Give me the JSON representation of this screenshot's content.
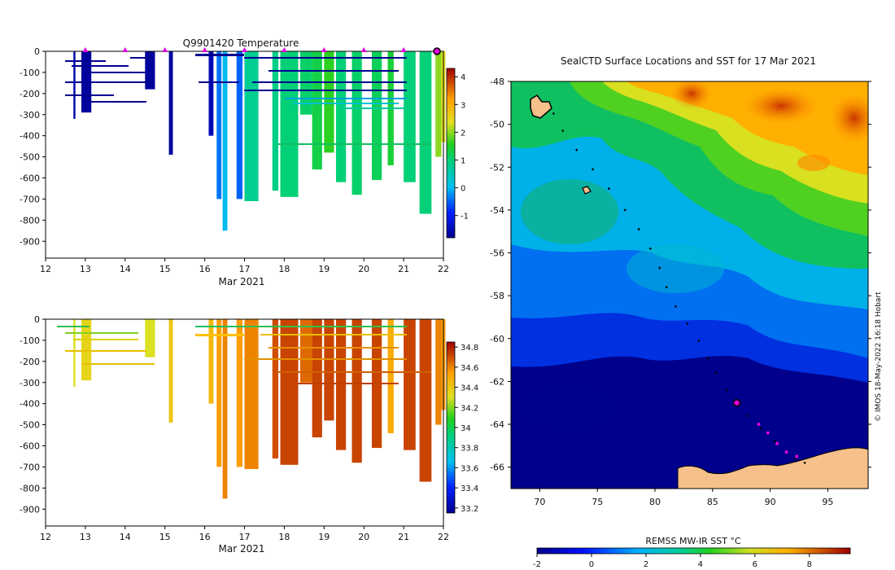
{
  "chart_data": [
    {
      "type": "heatmap",
      "title": "Q9901420  Temperature",
      "xlabel": "Mar 2021",
      "ylabel": "",
      "xlim": [
        12,
        22
      ],
      "ylim": [
        -980,
        0
      ],
      "xticks": [
        12,
        13,
        14,
        15,
        16,
        17,
        18,
        19,
        20,
        21,
        22
      ],
      "yticks": [
        0,
        -100,
        -200,
        -300,
        -400,
        -500,
        -600,
        -700,
        -800,
        -900
      ],
      "colorbar": {
        "ticks": [
          4,
          3,
          2,
          1,
          0,
          -1
        ],
        "range": [
          -1.8,
          4.3
        ]
      },
      "surface_markers_days": [
        13,
        14,
        15,
        16,
        17,
        18,
        19,
        20,
        21
      ],
      "profiles": [
        {
          "x": 12.7,
          "w": 0.05,
          "bottom": -320,
          "value": -1.6
        },
        {
          "x": 12.9,
          "w": 0.25,
          "bottom": -290,
          "value": -1.7
        },
        {
          "x": 14.5,
          "w": 0.25,
          "bottom": -180,
          "value": -1.7
        },
        {
          "x": 15.1,
          "w": 0.1,
          "bottom": -490,
          "value": -1.7
        },
        {
          "x": 16.1,
          "w": 0.12,
          "bottom": -400,
          "value": -1.5
        },
        {
          "x": 16.3,
          "w": 0.12,
          "bottom": -700,
          "value": -0.4
        },
        {
          "x": 16.45,
          "w": 0.12,
          "bottom": -850,
          "value": 0.0
        },
        {
          "x": 16.8,
          "w": 0.15,
          "bottom": -700,
          "value": -0.5
        },
        {
          "x": 17.0,
          "w": 0.35,
          "bottom": -710,
          "value": 0.8
        },
        {
          "x": 17.7,
          "w": 0.15,
          "bottom": -660,
          "value": 0.9
        },
        {
          "x": 17.9,
          "w": 0.45,
          "bottom": -690,
          "value": 1.0
        },
        {
          "x": 18.4,
          "w": 0.3,
          "bottom": -300,
          "value": 1.1
        },
        {
          "x": 18.7,
          "w": 0.25,
          "bottom": -560,
          "value": 1.3
        },
        {
          "x": 19.0,
          "w": 0.25,
          "bottom": -480,
          "value": 1.6
        },
        {
          "x": 19.3,
          "w": 0.25,
          "bottom": -620,
          "value": 1.0
        },
        {
          "x": 19.7,
          "w": 0.25,
          "bottom": -680,
          "value": 1.1
        },
        {
          "x": 20.2,
          "w": 0.25,
          "bottom": -610,
          "value": 1.2
        },
        {
          "x": 20.6,
          "w": 0.15,
          "bottom": -540,
          "value": 1.4
        },
        {
          "x": 21.0,
          "w": 0.3,
          "bottom": -620,
          "value": 1.0
        },
        {
          "x": 21.4,
          "w": 0.3,
          "bottom": -770,
          "value": 1.0
        },
        {
          "x": 21.8,
          "w": 0.15,
          "bottom": -500,
          "value": 2.0
        },
        {
          "x": 21.95,
          "w": 0.1,
          "bottom": -430,
          "value": 2.4
        }
      ]
    },
    {
      "type": "heatmap",
      "title": "",
      "xlabel": "Mar 2021",
      "ylabel": "",
      "xlim": [
        12,
        22
      ],
      "ylim": [
        -980,
        0
      ],
      "xticks": [
        12,
        13,
        14,
        15,
        16,
        17,
        18,
        19,
        20,
        21,
        22
      ],
      "yticks": [
        0,
        -100,
        -200,
        -300,
        -400,
        -500,
        -600,
        -700,
        -800,
        -900
      ],
      "colorbar": {
        "ticks": [
          34.8,
          34.6,
          34.4,
          34.2,
          34,
          33.8,
          33.6,
          33.4,
          33.2
        ],
        "range": [
          33.15,
          34.85
        ]
      },
      "profiles": [
        {
          "x": 12.7,
          "w": 0.05,
          "bottom": -320,
          "value": 34.3
        },
        {
          "x": 12.9,
          "w": 0.25,
          "bottom": -290,
          "value": 34.35
        },
        {
          "x": 14.5,
          "w": 0.25,
          "bottom": -180,
          "value": 34.3
        },
        {
          "x": 15.1,
          "w": 0.1,
          "bottom": -490,
          "value": 34.4
        },
        {
          "x": 16.1,
          "w": 0.12,
          "bottom": -400,
          "value": 34.45
        },
        {
          "x": 16.3,
          "w": 0.12,
          "bottom": -700,
          "value": 34.55
        },
        {
          "x": 16.45,
          "w": 0.12,
          "bottom": -850,
          "value": 34.6
        },
        {
          "x": 16.8,
          "w": 0.15,
          "bottom": -700,
          "value": 34.55
        },
        {
          "x": 17.0,
          "w": 0.35,
          "bottom": -710,
          "value": 34.6
        },
        {
          "x": 17.7,
          "w": 0.15,
          "bottom": -660,
          "value": 34.7
        },
        {
          "x": 17.9,
          "w": 0.45,
          "bottom": -690,
          "value": 34.72
        },
        {
          "x": 18.4,
          "w": 0.3,
          "bottom": -300,
          "value": 34.65
        },
        {
          "x": 18.7,
          "w": 0.25,
          "bottom": -560,
          "value": 34.72
        },
        {
          "x": 19.0,
          "w": 0.25,
          "bottom": -480,
          "value": 34.72
        },
        {
          "x": 19.3,
          "w": 0.25,
          "bottom": -620,
          "value": 34.72
        },
        {
          "x": 19.7,
          "w": 0.25,
          "bottom": -680,
          "value": 34.72
        },
        {
          "x": 20.2,
          "w": 0.25,
          "bottom": -610,
          "value": 34.72
        },
        {
          "x": 20.6,
          "w": 0.15,
          "bottom": -540,
          "value": 34.5
        },
        {
          "x": 21.0,
          "w": 0.3,
          "bottom": -620,
          "value": 34.72
        },
        {
          "x": 21.4,
          "w": 0.3,
          "bottom": -770,
          "value": 34.72
        },
        {
          "x": 21.8,
          "w": 0.15,
          "bottom": -500,
          "value": 34.6
        },
        {
          "x": 21.95,
          "w": 0.1,
          "bottom": -430,
          "value": 34.55
        }
      ]
    },
    {
      "type": "heatmap",
      "title": "SealCTD Surface Locations and SST for 17 Mar 2021",
      "xlabel": "",
      "ylabel": "",
      "xlim": [
        67.5,
        98.5
      ],
      "ylim": [
        -67,
        -48
      ],
      "xticks": [
        70,
        75,
        80,
        85,
        90,
        95
      ],
      "yticks": [
        -48,
        -50,
        -52,
        -54,
        -56,
        -58,
        -60,
        -62,
        -64,
        -66
      ],
      "colorbar": {
        "label": "REMSS MW-IR SST °C",
        "ticks": [
          -2,
          0,
          2,
          4,
          6,
          8
        ],
        "range": [
          -2,
          9.5
        ]
      },
      "track": [
        [
          71.2,
          -49.5
        ],
        [
          72.0,
          -50.3
        ],
        [
          73.2,
          -51.2
        ],
        [
          74.6,
          -52.1
        ],
        [
          76.0,
          -53.0
        ],
        [
          77.4,
          -54.0
        ],
        [
          78.6,
          -54.9
        ],
        [
          79.6,
          -55.8
        ],
        [
          80.4,
          -56.7
        ],
        [
          81.0,
          -57.6
        ],
        [
          81.8,
          -58.5
        ],
        [
          82.8,
          -59.3
        ],
        [
          83.8,
          -60.1
        ],
        [
          84.6,
          -60.9
        ],
        [
          85.3,
          -61.6
        ],
        [
          86.2,
          -62.4
        ],
        [
          87.0,
          -63.0
        ],
        [
          88.0,
          -63.6
        ],
        [
          89.2,
          -64.2
        ],
        [
          90.4,
          -64.8
        ],
        [
          91.4,
          -65.3
        ],
        [
          92.2,
          -65.6
        ],
        [
          93.0,
          -65.8
        ]
      ],
      "current_position": [
        87.1,
        -63.0
      ],
      "recent_positions": [
        [
          89.0,
          -64.0
        ],
        [
          89.8,
          -64.4
        ],
        [
          90.6,
          -64.9
        ],
        [
          91.4,
          -65.3
        ],
        [
          92.3,
          -65.5
        ]
      ],
      "islands": [
        [
          69.5,
          -49.3
        ],
        [
          73.5,
          -53.2
        ]
      ],
      "credit": "© IMOS 18-May-2022 16:18 Hobart"
    }
  ]
}
